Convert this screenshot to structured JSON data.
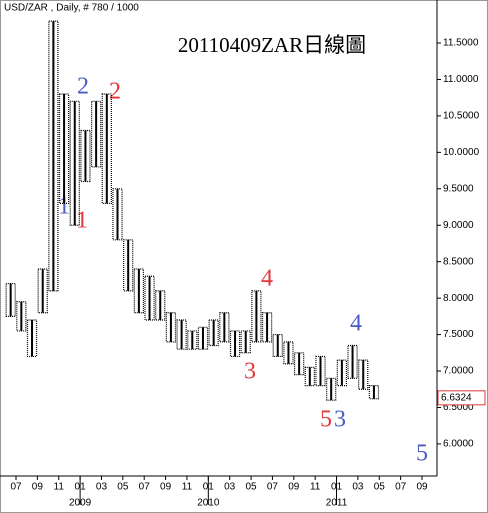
{
  "chart_data": {
    "type": "range_bar",
    "header": "USD/ZAR , Daily, # 780 / 1000",
    "title": "20110409ZAR日線圖",
    "color": "#000000",
    "x": [
      "2008-06",
      "2008-07",
      "2008-08",
      "2008-09",
      "2008-10",
      "2008-11",
      "2008-12",
      "2009-01",
      "2009-02",
      "2009-03",
      "2009-04",
      "2009-05",
      "2009-06",
      "2009-07",
      "2009-08",
      "2009-09",
      "2009-10",
      "2009-11",
      "2009-12",
      "2010-01",
      "2010-02",
      "2010-03",
      "2010-04",
      "2010-05",
      "2010-06",
      "2010-07",
      "2010-08",
      "2010-09",
      "2010-10",
      "2010-11",
      "2010-12",
      "2011-01",
      "2011-02",
      "2011-03",
      "2011-04"
    ],
    "highs": [
      8.2,
      7.95,
      7.7,
      8.4,
      11.8,
      10.8,
      10.7,
      10.3,
      10.7,
      10.8,
      9.5,
      8.8,
      8.4,
      8.3,
      8.1,
      7.8,
      7.7,
      7.55,
      7.6,
      7.7,
      7.8,
      7.55,
      7.55,
      8.1,
      7.8,
      7.5,
      7.4,
      7.25,
      7.05,
      7.2,
      6.9,
      7.15,
      7.35,
      7.15,
      6.8
    ],
    "lows": [
      7.75,
      7.55,
      7.2,
      7.8,
      8.1,
      9.3,
      9.0,
      9.6,
      9.8,
      9.3,
      8.8,
      8.1,
      7.8,
      7.7,
      7.7,
      7.4,
      7.3,
      7.3,
      7.3,
      7.35,
      7.4,
      7.2,
      7.25,
      7.4,
      7.4,
      7.2,
      7.1,
      6.95,
      6.8,
      6.8,
      6.6,
      6.8,
      6.9,
      6.75,
      6.62
    ],
    "last_value": 6.6324,
    "ylim": [
      5.56,
      12.09
    ],
    "yticks": [
      {
        "value": 6,
        "label": "6.0000"
      },
      {
        "value": 6.5,
        "label": "6.5000"
      },
      {
        "value": 7,
        "label": "7.0000"
      },
      {
        "value": 7.5,
        "label": "7.5000"
      },
      {
        "value": 8,
        "label": "8.0000"
      },
      {
        "value": 8.5,
        "label": "8.5000"
      },
      {
        "value": 9,
        "label": "9.0000"
      },
      {
        "value": 9.5,
        "label": "9.5000"
      },
      {
        "value": 10,
        "label": "10.0000"
      },
      {
        "value": 10.5,
        "label": "10.5000"
      },
      {
        "value": 11,
        "label": "11.0000"
      },
      {
        "value": 11.5,
        "label": "11.5000"
      }
    ],
    "xticks": [
      {
        "value": "2008-07",
        "label": "07"
      },
      {
        "value": "2008-09",
        "label": "09"
      },
      {
        "value": "2008-11",
        "label": "11"
      },
      {
        "value": "2009-01",
        "label": "01"
      },
      {
        "value": "2009-03",
        "label": "03"
      },
      {
        "value": "2009-05",
        "label": "05"
      },
      {
        "value": "2009-07",
        "label": "07"
      },
      {
        "value": "2009-09",
        "label": "09"
      },
      {
        "value": "2009-11",
        "label": "11"
      },
      {
        "value": "2010-01",
        "label": "01"
      },
      {
        "value": "2010-03",
        "label": "03"
      },
      {
        "value": "2010-05",
        "label": "05"
      },
      {
        "value": "2010-07",
        "label": "07"
      },
      {
        "value": "2010-09",
        "label": "09"
      },
      {
        "value": "2010-11",
        "label": "11"
      },
      {
        "value": "2011-01",
        "label": "01"
      },
      {
        "value": "2011-03",
        "label": "03"
      },
      {
        "value": "2011-05",
        "label": "05"
      },
      {
        "value": "2011-07",
        "label": "07"
      },
      {
        "value": "2011-09",
        "label": "09"
      }
    ],
    "year_labels": [
      {
        "value": "2009-01",
        "label": "2009"
      },
      {
        "value": "2010-01",
        "label": "2010"
      },
      {
        "value": "2011-01",
        "label": "2011"
      }
    ],
    "annotations": [
      {
        "text": "1",
        "color": "#4a5cc4"
      },
      {
        "text": "1",
        "color": "#e0383a"
      },
      {
        "text": "2",
        "color": "#4a5cc4"
      },
      {
        "text": "2",
        "color": "#e0383a"
      },
      {
        "text": "3",
        "color": "#e0383a"
      },
      {
        "text": "4",
        "color": "#e0383a"
      },
      {
        "text": "4",
        "color": "#4a5cc4"
      },
      {
        "text": "5",
        "color": "#e0383a"
      },
      {
        "text": "3",
        "color": "#4a5cc4"
      },
      {
        "text": "5",
        "color": "#4a5cc4"
      }
    ]
  }
}
